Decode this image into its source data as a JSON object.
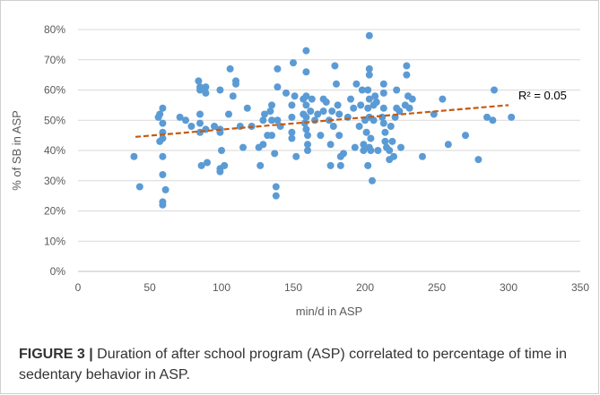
{
  "chart_data": {
    "type": "scatter",
    "xlabel": "min/d in ASP",
    "ylabel": "% of SB in ASP",
    "xlim": [
      0,
      350
    ],
    "ylim": [
      0,
      80
    ],
    "xticks": [
      "0",
      "50",
      "100",
      "150",
      "200",
      "250",
      "300",
      "350"
    ],
    "yticks": [
      "0%",
      "10%",
      "20%",
      "30%",
      "40%",
      "50%",
      "60%",
      "70%",
      "80%"
    ],
    "grid": "horizontal",
    "marker_color": "#5b9bd5",
    "trendline": {
      "color": "#c55a11",
      "style": "dashed",
      "x_start": 40,
      "y_start": 44.5,
      "x_end": 300,
      "y_end": 55,
      "label": "R² = 0.05"
    },
    "points": [
      [
        39,
        38
      ],
      [
        43,
        28
      ],
      [
        56,
        51
      ],
      [
        57,
        52
      ],
      [
        57,
        43
      ],
      [
        59,
        54
      ],
      [
        59,
        49
      ],
      [
        59,
        46
      ],
      [
        59,
        44
      ],
      [
        59,
        38
      ],
      [
        59,
        32
      ],
      [
        59,
        23
      ],
      [
        59,
        22
      ],
      [
        61,
        27
      ],
      [
        71,
        51
      ],
      [
        75,
        50
      ],
      [
        79,
        48
      ],
      [
        84,
        63
      ],
      [
        85,
        61
      ],
      [
        85,
        60
      ],
      [
        85,
        52
      ],
      [
        85,
        49
      ],
      [
        85,
        46
      ],
      [
        86,
        35
      ],
      [
        89,
        61
      ],
      [
        89,
        59
      ],
      [
        89,
        47
      ],
      [
        90,
        36
      ],
      [
        95,
        48
      ],
      [
        99,
        60
      ],
      [
        99,
        47
      ],
      [
        99,
        46
      ],
      [
        99,
        34
      ],
      [
        99,
        33
      ],
      [
        100,
        40
      ],
      [
        102,
        35
      ],
      [
        105,
        52
      ],
      [
        106,
        67
      ],
      [
        108,
        58
      ],
      [
        110,
        63
      ],
      [
        110,
        62
      ],
      [
        113,
        48
      ],
      [
        115,
        41
      ],
      [
        118,
        54
      ],
      [
        121,
        48
      ],
      [
        126,
        41
      ],
      [
        127,
        35
      ],
      [
        129,
        50
      ],
      [
        129,
        42
      ],
      [
        130,
        52
      ],
      [
        132,
        45
      ],
      [
        134,
        53
      ],
      [
        135,
        55
      ],
      [
        135,
        50
      ],
      [
        135,
        45
      ],
      [
        137,
        39
      ],
      [
        138,
        28
      ],
      [
        138,
        25
      ],
      [
        139,
        67
      ],
      [
        139,
        50
      ],
      [
        139,
        61
      ],
      [
        141,
        48
      ],
      [
        145,
        59
      ],
      [
        149,
        55
      ],
      [
        149,
        51
      ],
      [
        149,
        46
      ],
      [
        149,
        44
      ],
      [
        150,
        69
      ],
      [
        151,
        58
      ],
      [
        152,
        38
      ],
      [
        157,
        57
      ],
      [
        157,
        52
      ],
      [
        158,
        49
      ],
      [
        159,
        73
      ],
      [
        159,
        66
      ],
      [
        159,
        58
      ],
      [
        159,
        55
      ],
      [
        159,
        51
      ],
      [
        159,
        47
      ],
      [
        160,
        45
      ],
      [
        160,
        42
      ],
      [
        160,
        40
      ],
      [
        162,
        53
      ],
      [
        163,
        57
      ],
      [
        165,
        50
      ],
      [
        167,
        52
      ],
      [
        169,
        45
      ],
      [
        171,
        57
      ],
      [
        171,
        53
      ],
      [
        173,
        56
      ],
      [
        175,
        50
      ],
      [
        176,
        42
      ],
      [
        176,
        35
      ],
      [
        177,
        53
      ],
      [
        178,
        48
      ],
      [
        179,
        68
      ],
      [
        180,
        62
      ],
      [
        181,
        55
      ],
      [
        182,
        52
      ],
      [
        182,
        45
      ],
      [
        183,
        38
      ],
      [
        183,
        35
      ],
      [
        185,
        39
      ],
      [
        188,
        51
      ],
      [
        190,
        57
      ],
      [
        192,
        54
      ],
      [
        193,
        41
      ],
      [
        194,
        62
      ],
      [
        196,
        48
      ],
      [
        197,
        55
      ],
      [
        198,
        60
      ],
      [
        199,
        42
      ],
      [
        199,
        40
      ],
      [
        200,
        50
      ],
      [
        201,
        46
      ],
      [
        202,
        60
      ],
      [
        202,
        54
      ],
      [
        202,
        35
      ],
      [
        203,
        78
      ],
      [
        203,
        67
      ],
      [
        203,
        65
      ],
      [
        203,
        57
      ],
      [
        203,
        51
      ],
      [
        203,
        41
      ],
      [
        204,
        44
      ],
      [
        204,
        40
      ],
      [
        205,
        30
      ],
      [
        206,
        55
      ],
      [
        206,
        50
      ],
      [
        207,
        58
      ],
      [
        208,
        56
      ],
      [
        209,
        40
      ],
      [
        212,
        51
      ],
      [
        213,
        62
      ],
      [
        213,
        59
      ],
      [
        213,
        54
      ],
      [
        213,
        49
      ],
      [
        214,
        46
      ],
      [
        214,
        43
      ],
      [
        215,
        41
      ],
      [
        217,
        40
      ],
      [
        217,
        37
      ],
      [
        218,
        48
      ],
      [
        219,
        43
      ],
      [
        220,
        38
      ],
      [
        221,
        51
      ],
      [
        222,
        60
      ],
      [
        222,
        54
      ],
      [
        224,
        53
      ],
      [
        225,
        41
      ],
      [
        228,
        55
      ],
      [
        229,
        68
      ],
      [
        229,
        65
      ],
      [
        230,
        58
      ],
      [
        231,
        54
      ],
      [
        233,
        57
      ],
      [
        240,
        38
      ],
      [
        248,
        52
      ],
      [
        254,
        57
      ],
      [
        258,
        42
      ],
      [
        270,
        45
      ],
      [
        279,
        37
      ],
      [
        285,
        51
      ],
      [
        289,
        50
      ],
      [
        290,
        60
      ],
      [
        302,
        51
      ]
    ]
  },
  "caption": {
    "label": "FIGURE 3 |",
    "text": " Duration of after school program (ASP) correlated to percentage of time in sedentary behavior in ASP."
  }
}
